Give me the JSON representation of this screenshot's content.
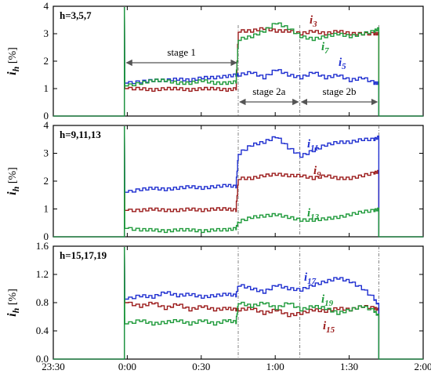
{
  "chart_data": {
    "type": "line",
    "x_axis": {
      "range": [
        "23:30",
        "2:00"
      ],
      "ticks": [
        "23:30",
        "0:00",
        "0:30",
        "1:00",
        "1:30",
        "2:00"
      ]
    },
    "vlines_dashed": [
      "0:45",
      "1:10",
      "1:42"
    ],
    "stages": [
      {
        "label": "stage 1",
        "from": "23:59",
        "to": "0:45",
        "panel": 0
      },
      {
        "label": "stage 2a",
        "from": "0:45",
        "to": "1:10",
        "panel": 0
      },
      {
        "label": "stage 2b",
        "from": "1:10",
        "to": "1:42",
        "panel": 0
      }
    ],
    "panels": [
      {
        "harmonics_label": "h=3,5,7",
        "ylabel_main": "i",
        "ylabel_sub": "h",
        "ylabel_unit": "[%]",
        "ylim": [
          0,
          4
        ],
        "yticks": [
          "0",
          "1",
          "2",
          "3",
          "4"
        ],
        "ytick_values": [
          0,
          1,
          2,
          3,
          4
        ],
        "series": [
          {
            "name": "i3",
            "label_main": "i",
            "label_sub": "3",
            "color": "#9b1b1b",
            "points": [
              [
                "23:59",
                1.0
              ],
              [
                "0:05",
                1.0
              ],
              [
                "0:10",
                0.95
              ],
              [
                "0:15",
                1.0
              ],
              [
                "0:20",
                1.0
              ],
              [
                "0:25",
                0.95
              ],
              [
                "0:30",
                1.0
              ],
              [
                "0:35",
                1.0
              ],
              [
                "0:40",
                0.95
              ],
              [
                "0:44",
                1.0
              ],
              [
                "0:45",
                3.1
              ],
              [
                "0:50",
                3.1
              ],
              [
                "0:55",
                3.2
              ],
              [
                "1:00",
                3.1
              ],
              [
                "1:05",
                3.1
              ],
              [
                "1:10",
                3.0
              ],
              [
                "1:15",
                3.1
              ],
              [
                "1:20",
                3.0
              ],
              [
                "1:25",
                3.1
              ],
              [
                "1:30",
                3.0
              ],
              [
                "1:35",
                3.0
              ],
              [
                "1:40",
                3.0
              ],
              [
                "1:42",
                3.0
              ]
            ]
          },
          {
            "name": "i5",
            "label_main": "i",
            "label_sub": "5",
            "color": "#1f2fd0",
            "points": [
              [
                "23:59",
                1.2
              ],
              [
                "0:05",
                1.25
              ],
              [
                "0:10",
                1.3
              ],
              [
                "0:15",
                1.3
              ],
              [
                "0:20",
                1.35
              ],
              [
                "0:25",
                1.3
              ],
              [
                "0:30",
                1.4
              ],
              [
                "0:35",
                1.4
              ],
              [
                "0:40",
                1.45
              ],
              [
                "0:44",
                1.5
              ],
              [
                "0:45",
                1.5
              ],
              [
                "0:50",
                1.6
              ],
              [
                "0:55",
                1.4
              ],
              [
                "1:00",
                1.7
              ],
              [
                "1:05",
                1.5
              ],
              [
                "1:10",
                1.4
              ],
              [
                "1:15",
                1.6
              ],
              [
                "1:20",
                1.4
              ],
              [
                "1:25",
                1.5
              ],
              [
                "1:30",
                1.3
              ],
              [
                "1:35",
                1.4
              ],
              [
                "1:40",
                1.2
              ],
              [
                "1:42",
                1.2
              ]
            ]
          },
          {
            "name": "i7",
            "label_main": "i",
            "label_sub": "7",
            "color": "#1e9a3a",
            "points": [
              [
                "23:59",
                1.1
              ],
              [
                "0:05",
                1.2
              ],
              [
                "0:10",
                1.3
              ],
              [
                "0:15",
                1.3
              ],
              [
                "0:20",
                1.2
              ],
              [
                "0:25",
                1.2
              ],
              [
                "0:30",
                1.3
              ],
              [
                "0:35",
                1.2
              ],
              [
                "0:40",
                1.2
              ],
              [
                "0:44",
                1.25
              ],
              [
                "0:45",
                2.8
              ],
              [
                "0:50",
                2.9
              ],
              [
                "0:55",
                3.1
              ],
              [
                "1:00",
                3.4
              ],
              [
                "1:05",
                3.2
              ],
              [
                "1:10",
                2.9
              ],
              [
                "1:15",
                2.8
              ],
              [
                "1:20",
                2.9
              ],
              [
                "1:25",
                3.0
              ],
              [
                "1:30",
                2.9
              ],
              [
                "1:35",
                3.0
              ],
              [
                "1:40",
                3.1
              ],
              [
                "1:42",
                3.2
              ]
            ]
          }
        ]
      },
      {
        "harmonics_label": "h=9,11,13",
        "ylabel_main": "i",
        "ylabel_sub": "h",
        "ylabel_unit": "[%]",
        "ylim": [
          0,
          4
        ],
        "yticks": [
          "0",
          "1",
          "2",
          "3",
          "4"
        ],
        "ytick_values": [
          0,
          1,
          2,
          3,
          4
        ],
        "series": [
          {
            "name": "i9",
            "label_main": "i",
            "label_sub": "9",
            "color": "#9b1b1b",
            "points": [
              [
                "23:59",
                0.95
              ],
              [
                "0:05",
                0.95
              ],
              [
                "0:10",
                1.0
              ],
              [
                "0:15",
                0.95
              ],
              [
                "0:20",
                0.95
              ],
              [
                "0:25",
                1.0
              ],
              [
                "0:30",
                0.95
              ],
              [
                "0:35",
                1.0
              ],
              [
                "0:40",
                1.0
              ],
              [
                "0:44",
                0.95
              ],
              [
                "0:45",
                2.1
              ],
              [
                "0:50",
                2.1
              ],
              [
                "0:55",
                2.2
              ],
              [
                "1:00",
                2.25
              ],
              [
                "1:05",
                2.2
              ],
              [
                "1:10",
                2.2
              ],
              [
                "1:15",
                2.1
              ],
              [
                "1:20",
                2.2
              ],
              [
                "1:25",
                2.1
              ],
              [
                "1:30",
                2.1
              ],
              [
                "1:35",
                2.2
              ],
              [
                "1:40",
                2.3
              ],
              [
                "1:42",
                2.35
              ]
            ]
          },
          {
            "name": "i11",
            "label_main": "i",
            "label_sub": "11",
            "color": "#1f2fd0",
            "points": [
              [
                "23:59",
                1.6
              ],
              [
                "0:05",
                1.7
              ],
              [
                "0:10",
                1.75
              ],
              [
                "0:15",
                1.7
              ],
              [
                "0:20",
                1.75
              ],
              [
                "0:25",
                1.8
              ],
              [
                "0:30",
                1.75
              ],
              [
                "0:35",
                1.8
              ],
              [
                "0:40",
                1.85
              ],
              [
                "0:44",
                1.8
              ],
              [
                "0:45",
                3.0
              ],
              [
                "0:50",
                3.3
              ],
              [
                "0:55",
                3.4
              ],
              [
                "1:00",
                3.6
              ],
              [
                "1:05",
                3.2
              ],
              [
                "1:10",
                2.9
              ],
              [
                "1:15",
                3.1
              ],
              [
                "1:20",
                3.3
              ],
              [
                "1:25",
                3.4
              ],
              [
                "1:30",
                3.4
              ],
              [
                "1:35",
                3.5
              ],
              [
                "1:40",
                3.5
              ],
              [
                "1:42",
                3.6
              ]
            ]
          },
          {
            "name": "i13",
            "label_main": "i",
            "label_sub": "13",
            "color": "#1e9a3a",
            "points": [
              [
                "23:59",
                0.3
              ],
              [
                "0:05",
                0.25
              ],
              [
                "0:10",
                0.25
              ],
              [
                "0:15",
                0.2
              ],
              [
                "0:20",
                0.25
              ],
              [
                "0:25",
                0.25
              ],
              [
                "0:30",
                0.2
              ],
              [
                "0:35",
                0.25
              ],
              [
                "0:40",
                0.25
              ],
              [
                "0:44",
                0.3
              ],
              [
                "0:45",
                0.55
              ],
              [
                "0:50",
                0.7
              ],
              [
                "0:55",
                0.75
              ],
              [
                "1:00",
                0.8
              ],
              [
                "1:05",
                0.7
              ],
              [
                "1:10",
                0.6
              ],
              [
                "1:15",
                0.6
              ],
              [
                "1:20",
                0.65
              ],
              [
                "1:25",
                0.7
              ],
              [
                "1:30",
                0.8
              ],
              [
                "1:35",
                0.9
              ],
              [
                "1:40",
                0.95
              ],
              [
                "1:42",
                1.0
              ]
            ]
          }
        ]
      },
      {
        "harmonics_label": "h=15,17,19",
        "ylabel_main": "i",
        "ylabel_sub": "h",
        "ylabel_unit": "[%]",
        "ylim": [
          0,
          1.6
        ],
        "yticks": [
          "0.0",
          "0.4",
          "0.8",
          "1.2",
          "1.6"
        ],
        "ytick_values": [
          0,
          0.4,
          0.8,
          1.2,
          1.6
        ],
        "series": [
          {
            "name": "i15",
            "label_main": "i",
            "label_sub": "15",
            "color": "#9b1b1b",
            "points": [
              [
                "23:59",
                0.8
              ],
              [
                "0:05",
                0.75
              ],
              [
                "0:10",
                0.8
              ],
              [
                "0:15",
                0.72
              ],
              [
                "0:20",
                0.78
              ],
              [
                "0:25",
                0.7
              ],
              [
                "0:30",
                0.75
              ],
              [
                "0:35",
                0.7
              ],
              [
                "0:40",
                0.72
              ],
              [
                "0:44",
                0.7
              ],
              [
                "0:45",
                0.7
              ],
              [
                "0:50",
                0.72
              ],
              [
                "0:55",
                0.65
              ],
              [
                "1:00",
                0.7
              ],
              [
                "1:05",
                0.62
              ],
              [
                "1:10",
                0.65
              ],
              [
                "1:15",
                0.7
              ],
              [
                "1:20",
                0.68
              ],
              [
                "1:25",
                0.72
              ],
              [
                "1:30",
                0.7
              ],
              [
                "1:35",
                0.75
              ],
              [
                "1:40",
                0.72
              ],
              [
                "1:42",
                0.7
              ]
            ]
          },
          {
            "name": "i17",
            "label_main": "i",
            "label_sub": "17",
            "color": "#1f2fd0",
            "points": [
              [
                "23:59",
                0.85
              ],
              [
                "0:05",
                0.9
              ],
              [
                "0:10",
                0.88
              ],
              [
                "0:15",
                0.95
              ],
              [
                "0:20",
                0.9
              ],
              [
                "0:25",
                0.92
              ],
              [
                "0:30",
                0.88
              ],
              [
                "0:35",
                0.9
              ],
              [
                "0:40",
                0.92
              ],
              [
                "0:44",
                0.9
              ],
              [
                "0:45",
                1.05
              ],
              [
                "0:50",
                1.0
              ],
              [
                "0:55",
                0.95
              ],
              [
                "1:00",
                1.05
              ],
              [
                "1:05",
                1.0
              ],
              [
                "1:10",
                0.98
              ],
              [
                "1:15",
                1.05
              ],
              [
                "1:20",
                1.1
              ],
              [
                "1:25",
                1.15
              ],
              [
                "1:30",
                1.1
              ],
              [
                "1:35",
                1.0
              ],
              [
                "1:40",
                0.85
              ],
              [
                "1:42",
                0.75
              ]
            ]
          },
          {
            "name": "i19",
            "label_main": "i",
            "label_sub": "19",
            "color": "#1e9a3a",
            "points": [
              [
                "23:59",
                0.5
              ],
              [
                "0:05",
                0.55
              ],
              [
                "0:10",
                0.5
              ],
              [
                "0:15",
                0.52
              ],
              [
                "0:20",
                0.55
              ],
              [
                "0:25",
                0.5
              ],
              [
                "0:30",
                0.55
              ],
              [
                "0:35",
                0.5
              ],
              [
                "0:40",
                0.55
              ],
              [
                "0:44",
                0.52
              ],
              [
                "0:45",
                0.8
              ],
              [
                "0:50",
                0.75
              ],
              [
                "0:55",
                0.8
              ],
              [
                "1:00",
                0.72
              ],
              [
                "1:05",
                0.8
              ],
              [
                "1:10",
                0.7
              ],
              [
                "1:15",
                0.75
              ],
              [
                "1:20",
                0.72
              ],
              [
                "1:25",
                0.65
              ],
              [
                "1:30",
                0.7
              ],
              [
                "1:35",
                0.75
              ],
              [
                "1:40",
                0.68
              ],
              [
                "1:42",
                0.6
              ]
            ]
          }
        ]
      }
    ]
  }
}
